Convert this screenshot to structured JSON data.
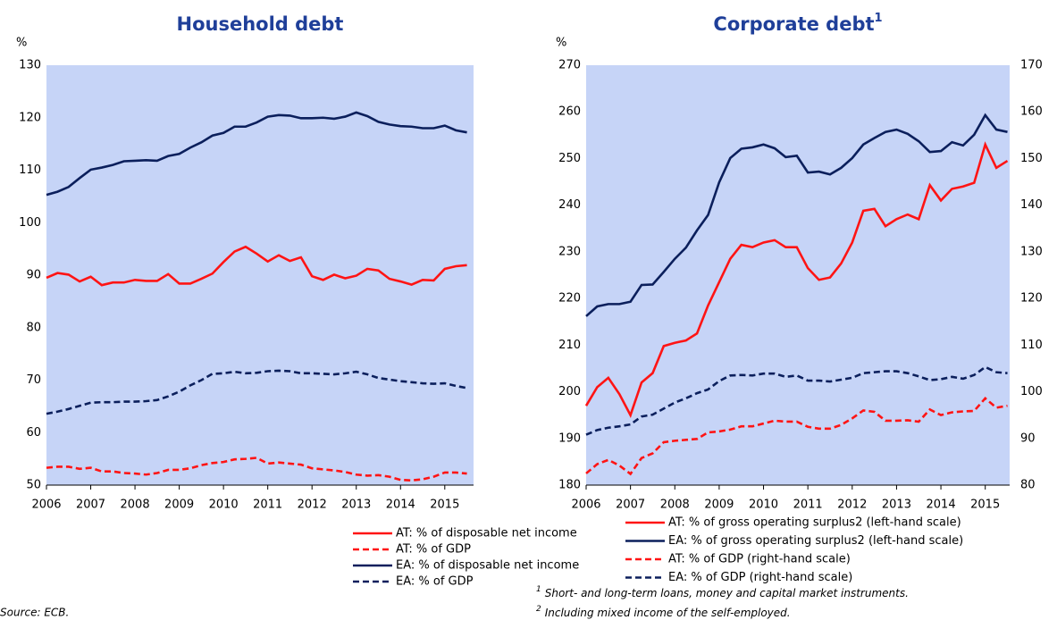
{
  "chart_data": [
    {
      "type": "line",
      "title": "Household debt",
      "ylabel": "%",
      "x": [
        2006,
        2006.25,
        2006.5,
        2006.75,
        2007,
        2007.25,
        2007.5,
        2007.75,
        2008,
        2008.25,
        2008.5,
        2008.75,
        2009,
        2009.25,
        2009.5,
        2009.75,
        2010,
        2010.25,
        2010.5,
        2010.75,
        2011,
        2011.25,
        2011.5,
        2011.75,
        2012,
        2012.25,
        2012.5,
        2012.75,
        2013,
        2013.25,
        2013.5,
        2013.75,
        2014,
        2014.25,
        2014.5,
        2014.75,
        2015,
        2015.25,
        2015.5
      ],
      "xlim": [
        2006,
        2015.65
      ],
      "xticks": [
        2006,
        2007,
        2008,
        2009,
        2010,
        2011,
        2012,
        2013,
        2014,
        2015
      ],
      "ylim": [
        50,
        130
      ],
      "yticks": [
        50,
        60,
        70,
        80,
        90,
        100,
        110,
        120,
        130
      ],
      "grid": false,
      "series": [
        {
          "name": "AT: % of disposable net income",
          "color": "#ff1414",
          "style": "solid",
          "values": [
            89.5,
            90.4,
            90.1,
            88.8,
            89.7,
            88.1,
            88.6,
            88.6,
            89.1,
            88.9,
            88.9,
            90.2,
            88.4,
            88.4,
            89.3,
            90.3,
            92.5,
            94.5,
            95.4,
            94.1,
            92.6,
            93.8,
            92.7,
            93.4,
            89.8,
            89.1,
            90.1,
            89.4,
            89.9,
            91.2,
            90.9,
            89.3,
            88.8,
            88.2,
            89.1,
            89.0,
            91.2,
            91.7,
            91.9
          ]
        },
        {
          "name": "AT: % of GDP",
          "color": "#ff1414",
          "style": "dashed",
          "values": [
            53.3,
            53.5,
            53.5,
            53.1,
            53.3,
            52.6,
            52.6,
            52.3,
            52.2,
            52.0,
            52.3,
            52.9,
            52.9,
            53.2,
            53.8,
            54.2,
            54.4,
            54.9,
            55.0,
            55.2,
            54.1,
            54.3,
            54.1,
            53.9,
            53.2,
            53.0,
            52.8,
            52.5,
            52.0,
            51.8,
            51.9,
            51.6,
            51.0,
            50.9,
            51.1,
            51.6,
            52.4,
            52.4,
            52.2
          ]
        },
        {
          "name": "EA: % of disposable net income",
          "color": "#0b1f5c",
          "style": "solid",
          "values": [
            105.3,
            105.9,
            106.8,
            108.5,
            110.1,
            110.5,
            111.0,
            111.7,
            111.8,
            111.9,
            111.8,
            112.7,
            113.1,
            114.3,
            115.3,
            116.6,
            117.1,
            118.3,
            118.3,
            119.1,
            120.2,
            120.5,
            120.4,
            119.9,
            119.9,
            120.0,
            119.8,
            120.2,
            121.0,
            120.3,
            119.2,
            118.7,
            118.4,
            118.3,
            118.0,
            118.0,
            118.5,
            117.6,
            117.2
          ]
        },
        {
          "name": "EA: % of GDP",
          "color": "#0b1f5c",
          "style": "dashed",
          "values": [
            63.6,
            64.0,
            64.5,
            65.1,
            65.7,
            65.8,
            65.8,
            65.9,
            65.9,
            66.0,
            66.2,
            66.9,
            67.8,
            69.0,
            70.0,
            71.2,
            71.3,
            71.6,
            71.3,
            71.4,
            71.7,
            71.8,
            71.7,
            71.3,
            71.3,
            71.2,
            71.1,
            71.3,
            71.6,
            71.1,
            70.4,
            70.1,
            69.8,
            69.6,
            69.4,
            69.3,
            69.4,
            68.9,
            68.5
          ]
        }
      ]
    },
    {
      "type": "line",
      "title": "Corporate debt",
      "title_note": "1",
      "ylabel": "%",
      "x": [
        2006,
        2006.25,
        2006.5,
        2006.75,
        2007,
        2007.25,
        2007.5,
        2007.75,
        2008,
        2008.25,
        2008.5,
        2008.75,
        2009,
        2009.25,
        2009.5,
        2009.75,
        2010,
        2010.25,
        2010.5,
        2010.75,
        2011,
        2011.25,
        2011.5,
        2011.75,
        2012,
        2012.25,
        2012.5,
        2012.75,
        2013,
        2013.25,
        2013.5,
        2013.75,
        2014,
        2014.25,
        2014.5,
        2014.75,
        2015,
        2015.25,
        2015.5
      ],
      "xlim": [
        2006,
        2015.55
      ],
      "xticks": [
        2006,
        2007,
        2008,
        2009,
        2010,
        2011,
        2012,
        2013,
        2014,
        2015
      ],
      "ylim": [
        180,
        270
      ],
      "yticks": [
        180,
        190,
        200,
        210,
        220,
        230,
        240,
        250,
        260,
        270
      ],
      "y2lim": [
        80,
        170
      ],
      "y2ticks": [
        80,
        90,
        100,
        110,
        120,
        130,
        140,
        150,
        160,
        170
      ],
      "grid": false,
      "series": [
        {
          "name": "AT: % of gross operating surplus2 (left-hand scale)",
          "color": "#ff1414",
          "style": "solid",
          "values": [
            197,
            201,
            203,
            199.5,
            195,
            202,
            204,
            209.8,
            210.5,
            211,
            212.5,
            218.5,
            223.5,
            228.5,
            231.5,
            231,
            232,
            232.5,
            231,
            231,
            226.5,
            224,
            224.5,
            227.5,
            232,
            238.8,
            239.2,
            235.5,
            237,
            238,
            237,
            244.3,
            241,
            243.5,
            244,
            244.8,
            253,
            248,
            249.5
          ]
        },
        {
          "name": "EA: % of gross operating surplus2 (left-hand scale)",
          "color": "#0b1f5c",
          "style": "solid",
          "values": [
            216.2,
            218.3,
            218.8,
            218.8,
            219.3,
            222.9,
            223,
            225.7,
            228.5,
            230.9,
            234.6,
            237.9,
            244.9,
            250.1,
            252.1,
            252.4,
            253,
            252.2,
            250.3,
            250.6,
            247,
            247.2,
            246.6,
            248,
            250.1,
            253,
            254.4,
            255.7,
            256.2,
            255.3,
            253.7,
            251.4,
            251.6,
            253.5,
            252.8,
            255.1,
            259.3,
            256.2,
            255.7
          ]
        },
        {
          "name": "AT: % of GDP (right-hand scale)",
          "color": "#ff1414",
          "style": "dashed",
          "axis": "y2",
          "values": [
            82.5,
            84.5,
            85.4,
            84.2,
            82.4,
            85.8,
            86.8,
            89.2,
            89.5,
            89.7,
            89.9,
            91.3,
            91.5,
            91.9,
            92.6,
            92.6,
            93.2,
            93.8,
            93.6,
            93.6,
            92.5,
            92.1,
            92.1,
            92.9,
            94.3,
            96,
            95.7,
            93.8,
            93.8,
            93.9,
            93.6,
            96.2,
            95,
            95.6,
            95.8,
            95.9,
            98.6,
            96.6,
            97.0
          ]
        },
        {
          "name": "EA: % of GDP (right-hand scale)",
          "color": "#0b1f5c",
          "style": "dashed",
          "axis": "y2",
          "values": [
            90.8,
            91.8,
            92.3,
            92.6,
            93,
            94.7,
            95.1,
            96.4,
            97.7,
            98.6,
            99.7,
            100.5,
            102.3,
            103.5,
            103.6,
            103.5,
            103.9,
            103.9,
            103.2,
            103.5,
            102.4,
            102.4,
            102.2,
            102.6,
            103.0,
            104.0,
            104.2,
            104.4,
            104.4,
            104.0,
            103.3,
            102.5,
            102.7,
            103.2,
            102.8,
            103.6,
            105.3,
            104.2,
            104.0
          ]
        }
      ],
      "footnotes": [
        {
          "marker": "1",
          "text": "Short- and long-term loans, money and capital market instruments."
        },
        {
          "marker": "2",
          "text": "Including mixed income of the self-employed."
        }
      ]
    }
  ],
  "source": "Source: ECB."
}
